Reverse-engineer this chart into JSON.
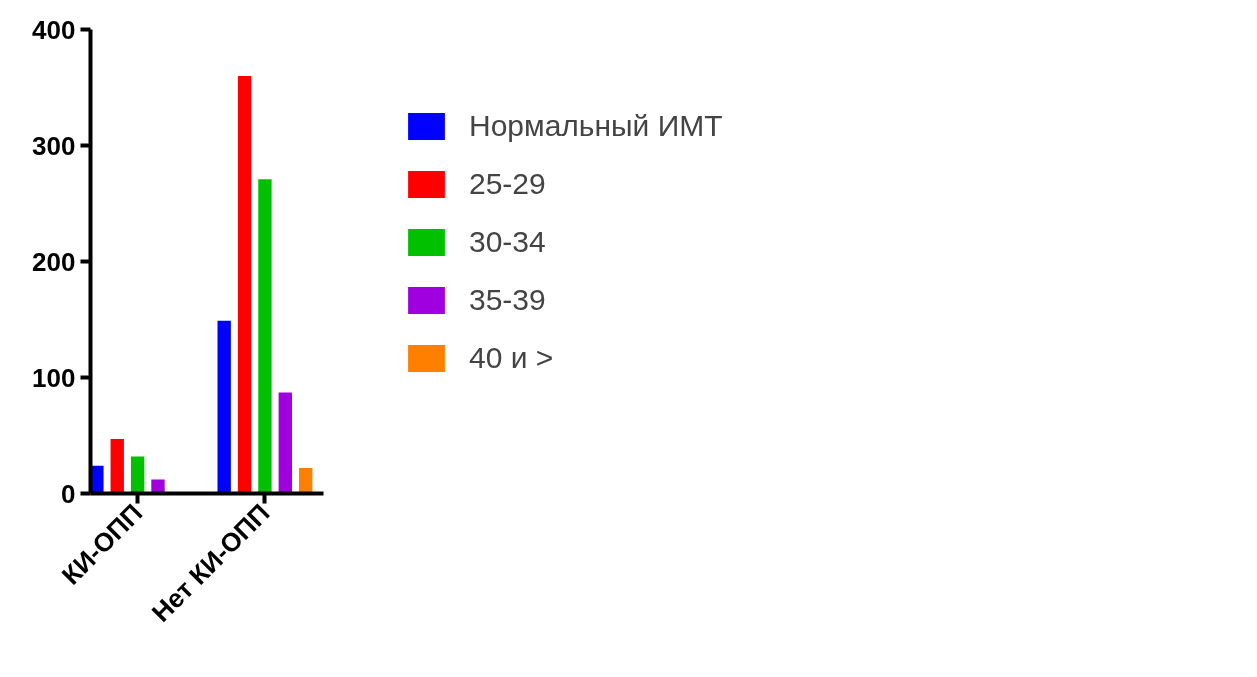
{
  "chart_data": {
    "type": "bar",
    "categories": [
      "КИ-ОПП",
      "Нет КИ-ОПП"
    ],
    "series": [
      {
        "name": "Нормальный ИМТ",
        "color": "#0000ff",
        "values": [
          24,
          149
        ]
      },
      {
        "name": "25-29",
        "color": "#ff0000",
        "values": [
          47,
          360
        ]
      },
      {
        "name": "30-34",
        "color": "#00c000",
        "values": [
          32,
          271
        ]
      },
      {
        "name": "35-39",
        "color": "#a000e0",
        "values": [
          12,
          87
        ]
      },
      {
        "name": "40 и >",
        "color": "#ff8000",
        "values": [
          null,
          22
        ]
      }
    ],
    "ylim": [
      0,
      400
    ],
    "yticks": [
      0,
      100,
      200,
      300,
      400
    ],
    "grid": false,
    "legend": "right"
  }
}
